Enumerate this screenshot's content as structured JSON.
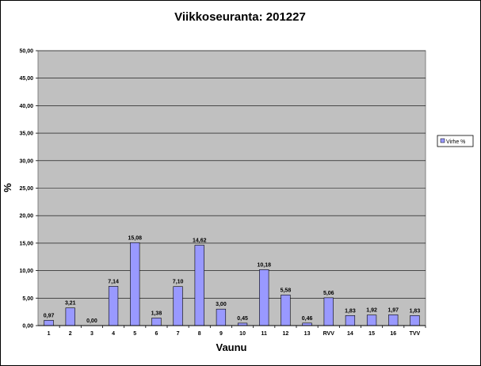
{
  "chart_data": {
    "type": "bar",
    "title": "Viikkoseuranta: 201227",
    "xlabel": "Vaunu",
    "ylabel": "%",
    "ylim": [
      0,
      50
    ],
    "yticks": [
      "0,00",
      "5,00",
      "10,00",
      "15,00",
      "20,00",
      "25,00",
      "30,00",
      "35,00",
      "40,00",
      "45,00",
      "50,00"
    ],
    "categories": [
      "1",
      "2",
      "3",
      "4",
      "5",
      "6",
      "7",
      "8",
      "9",
      "10",
      "11",
      "12",
      "13",
      "RVV",
      "14",
      "15",
      "16",
      "TVV"
    ],
    "series": [
      {
        "name": "Virhe %",
        "values": [
          0.97,
          3.21,
          0.0,
          7.14,
          15.08,
          1.38,
          7.1,
          14.62,
          3.0,
          0.45,
          10.18,
          5.58,
          0.46,
          5.06,
          1.83,
          1.92,
          1.97,
          1.83
        ],
        "labels": [
          "0,97",
          "3,21",
          "0,00",
          "7,14",
          "15,08",
          "1,38",
          "7,10",
          "14,62",
          "3,00",
          "0,45",
          "10,18",
          "5,58",
          "0,46",
          "5,06",
          "1,83",
          "1,92",
          "1,97",
          "1,83"
        ]
      }
    ],
    "grid": true,
    "legend": "right",
    "colors": {
      "plot_background": "#c0c0c0",
      "bar_fill": "#9999ff",
      "bar_stroke": "#000000",
      "gridline": "#000000"
    }
  }
}
